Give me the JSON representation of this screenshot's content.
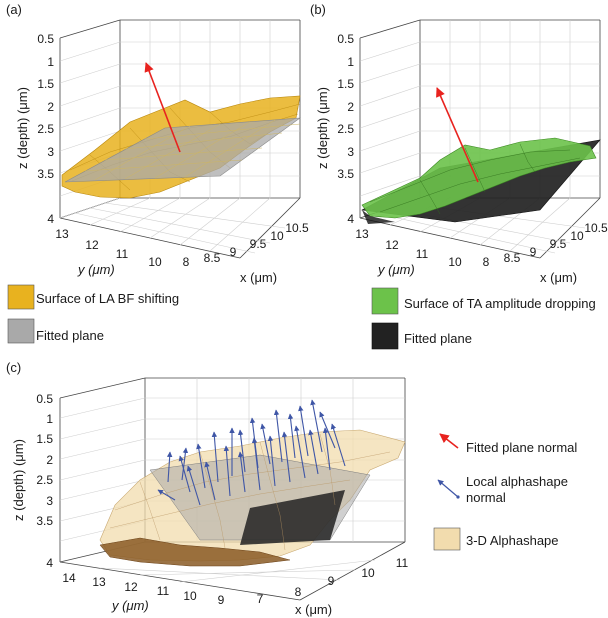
{
  "chart_data": [
    {
      "panel": "(a)",
      "type": "surface3d",
      "zlabel": "z (depth) (μm)",
      "ylabel": "y (μm)",
      "xlabel": "x (μm)",
      "z_ticks": [
        "0.5",
        "1",
        "1.5",
        "2",
        "2.5",
        "3",
        "3.5",
        "4"
      ],
      "y_ticks": [
        "13",
        "12",
        "11",
        "10"
      ],
      "x_ticks": [
        "8",
        "8.5",
        "9",
        "9.5",
        "10",
        "10.5"
      ],
      "series": [
        {
          "name": "Surface of LA BF shifting",
          "color": "#e8b21f"
        },
        {
          "name": "Fitted plane",
          "color": "#a9a9a9"
        }
      ]
    },
    {
      "panel": "(b)",
      "type": "surface3d",
      "zlabel": "z (depth) (μm)",
      "ylabel": "y (μm)",
      "xlabel": "x (μm)",
      "z_ticks": [
        "0.5",
        "1",
        "1.5",
        "2",
        "2.5",
        "3",
        "3.5",
        "4"
      ],
      "y_ticks": [
        "13",
        "12",
        "11",
        "10"
      ],
      "x_ticks": [
        "8",
        "8.5",
        "9",
        "9.5",
        "10",
        "10.5"
      ],
      "series": [
        {
          "name": "Surface of TA amplitude dropping",
          "color": "#6cc24a"
        },
        {
          "name": "Fitted plane",
          "color": "#222222"
        }
      ]
    },
    {
      "panel": "(c)",
      "type": "surface3d",
      "zlabel": "z (depth) (μm)",
      "ylabel": "y (μm)",
      "xlabel": "x (μm)",
      "z_ticks": [
        "0.5",
        "1",
        "1.5",
        "2",
        "2.5",
        "3",
        "3.5",
        "4"
      ],
      "y_ticks": [
        "14",
        "13",
        "12",
        "11",
        "10",
        "9"
      ],
      "x_ticks": [
        "7",
        "8",
        "9",
        "10",
        "11"
      ],
      "series": [
        {
          "name": "Fitted plane normal",
          "color": "#e8231f"
        },
        {
          "name": "Local alphashape normal",
          "color": "#3f56a6"
        },
        {
          "name": "3-D Alphashape",
          "color": "#f2dcae"
        }
      ]
    }
  ]
}
